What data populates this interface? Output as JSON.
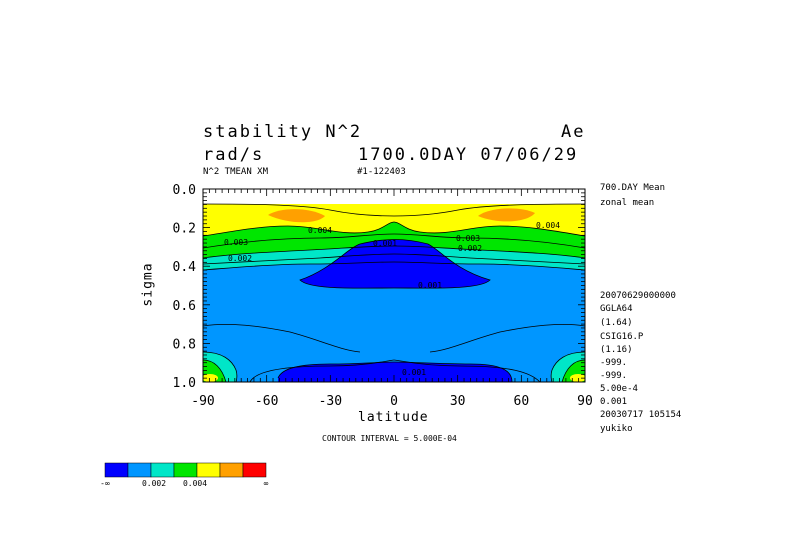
{
  "header": {
    "title": "stability N^2",
    "units": "rad/s",
    "model": "Ae",
    "time_label": "1700.0DAY 07/06/29",
    "subtitle_left": "N^2 TMEAN XM",
    "subtitle_mid": "#1-122403"
  },
  "side_info": [
    "700.DAY Mean",
    "zonal mean",
    "20070629000000",
    "GGLA64",
    "(1.64)",
    "CSIG16.P",
    "(1.16)",
    "-999.",
    "-999.",
    "5.00e-4",
    "0.001",
    "20030717 105154",
    "yukiko"
  ],
  "contour_interval": "CONTOUR INTERVAL = 5.000E-04",
  "colorbar": {
    "colors": [
      "#0000ff",
      "#0096ff",
      "#00e6c8",
      "#00e600",
      "#ffff00",
      "#ffa000",
      "#ff0000"
    ],
    "labels": [
      "-∞",
      "0.002",
      "0.004",
      "∞"
    ]
  },
  "chart_data": {
    "type": "contour",
    "xlabel": "latitude",
    "ylabel": "sigma",
    "xlim": [
      -90,
      90
    ],
    "ylim": [
      1.0,
      0.0
    ],
    "xticks": [
      "-90",
      "-60",
      "-30",
      "0",
      "30",
      "60",
      "90"
    ],
    "yticks": [
      "0.0",
      "0.2",
      "0.4",
      "0.6",
      "0.8",
      "1.0"
    ],
    "contour_labels": [
      "0.004",
      "0.003",
      "0.002",
      "0.001",
      "0.003",
      "0.002",
      "0.004",
      "0.001",
      "0.001"
    ],
    "level_step": 0.0005,
    "fill_colors": {
      "lt_0_001": "#0000ff",
      "0_001_0_002": "#0096ff",
      "0_002_0_003": "#00e6c8",
      "0_003_0_004": "#00e600",
      "0_004_0_005": "#ffff00",
      "0_005_0_006": "#ffa000",
      "gt_0_006": "#ff0000"
    }
  }
}
